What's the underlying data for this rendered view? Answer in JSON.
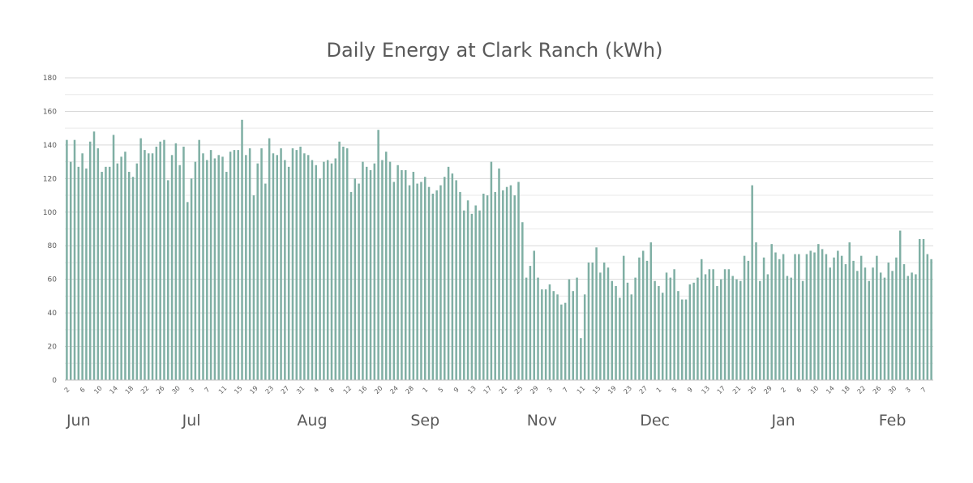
{
  "chart_data": {
    "type": "bar",
    "title": "Daily Energy at Clark Ranch (kWh)",
    "xlabel": "",
    "ylabel": "",
    "ylim": [
      0,
      180
    ],
    "yticks": [
      0,
      20,
      40,
      60,
      80,
      100,
      120,
      140,
      160,
      180
    ],
    "grid": true,
    "bar_color": "#7fafa4",
    "start_date": "06-02",
    "tick_labels": [
      "2",
      "6",
      "10",
      "14",
      "18",
      "22",
      "26",
      "30",
      "3",
      "7",
      "11",
      "15",
      "19",
      "23",
      "27",
      "31",
      "4",
      "8",
      "12",
      "16",
      "20",
      "24",
      "28",
      "1",
      "5",
      "9",
      "13",
      "17",
      "21",
      "25",
      "29",
      "3",
      "7",
      "11",
      "15",
      "19",
      "23",
      "27",
      "1",
      "5",
      "9",
      "13",
      "17",
      "21",
      "25",
      "29",
      "2",
      "6",
      "10",
      "14",
      "18",
      "22",
      "26",
      "30",
      "3",
      "7"
    ],
    "months": [
      {
        "label": "Jun",
        "day_index": 3
      },
      {
        "label": "Jul",
        "day_index": 32
      },
      {
        "label": "Aug",
        "day_index": 63
      },
      {
        "label": "Sep",
        "day_index": 92
      },
      {
        "label": "Nov",
        "day_index": 122
      },
      {
        "label": "Dec",
        "day_index": 151
      },
      {
        "label": "Jan",
        "day_index": 184
      },
      {
        "label": "Feb",
        "day_index": 212
      }
    ],
    "values": [
      143,
      130,
      143,
      127,
      135,
      126,
      142,
      148,
      138,
      124,
      127,
      127,
      146,
      129,
      133,
      136,
      124,
      121,
      129,
      144,
      137,
      135,
      135,
      139,
      142,
      143,
      119,
      134,
      141,
      128,
      139,
      106,
      120,
      130,
      143,
      135,
      131,
      137,
      132,
      134,
      133,
      124,
      136,
      137,
      137,
      155,
      134,
      138,
      110,
      129,
      138,
      117,
      144,
      135,
      134,
      138,
      131,
      127,
      138,
      137,
      139,
      135,
      134,
      131,
      128,
      120,
      130,
      131,
      129,
      132,
      142,
      139,
      138,
      112,
      120,
      117,
      130,
      127,
      125,
      129,
      149,
      131,
      136,
      130,
      118,
      128,
      125,
      125,
      116,
      124,
      117,
      118,
      121,
      115,
      111,
      113,
      116,
      121,
      127,
      123,
      119,
      112,
      101,
      107,
      99,
      104,
      101,
      111,
      110,
      130,
      112,
      126,
      113,
      115,
      116,
      110,
      118,
      94,
      61,
      68,
      77,
      61,
      54,
      54,
      57,
      53,
      51,
      45,
      46,
      60,
      53,
      61,
      25,
      51,
      70,
      70,
      79,
      64,
      70,
      67,
      59,
      56,
      49,
      74,
      58,
      51,
      61,
      73,
      77,
      71,
      82,
      59,
      56,
      52,
      64,
      61,
      66,
      53,
      48,
      48,
      57,
      58,
      61,
      72,
      63,
      66,
      66,
      56,
      60,
      66,
      66,
      62,
      60,
      59,
      74,
      71,
      116,
      82,
      59,
      73,
      63,
      81,
      76,
      72,
      75,
      62,
      61,
      75,
      75,
      59,
      75,
      77,
      76,
      81,
      78,
      75,
      67,
      73,
      77,
      74,
      69,
      82,
      71,
      65,
      74,
      67,
      59,
      67,
      74,
      64,
      61,
      70,
      65,
      73,
      89,
      69,
      62,
      64,
      63,
      84,
      84,
      75,
      72
    ]
  }
}
